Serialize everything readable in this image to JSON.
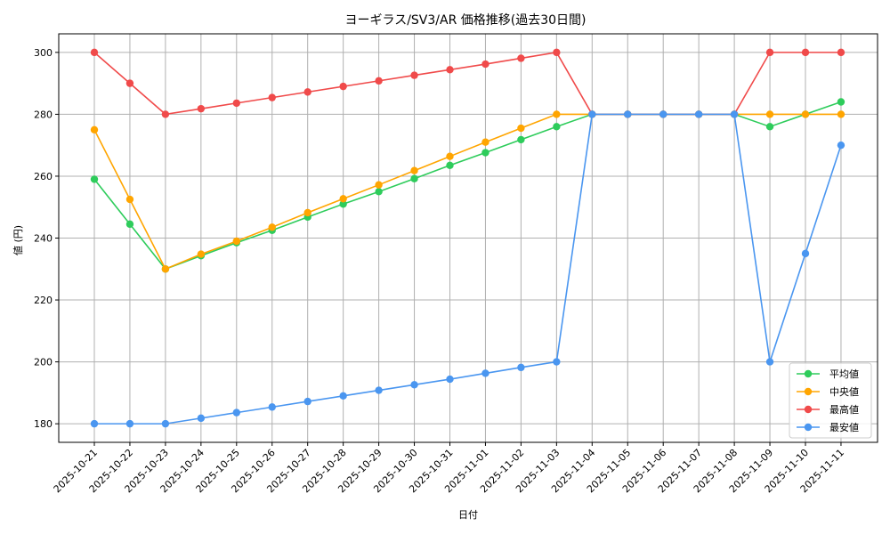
{
  "chart_data": {
    "type": "line",
    "title": "ヨーギラス/SV3/AR 価格推移(過去30日間)",
    "xlabel": "日付",
    "ylabel": "値 (円)",
    "categories": [
      "2025-10-21",
      "2025-10-22",
      "2025-10-23",
      "2025-10-24",
      "2025-10-25",
      "2025-10-26",
      "2025-10-27",
      "2025-10-28",
      "2025-10-29",
      "2025-10-30",
      "2025-10-31",
      "2025-11-01",
      "2025-11-02",
      "2025-11-03",
      "2025-11-04",
      "2025-11-05",
      "2025-11-06",
      "2025-11-07",
      "2025-11-08",
      "2025-11-09",
      "2025-11-10",
      "2025-11-11"
    ],
    "ylim": [
      174,
      306
    ],
    "yticks": [
      180,
      200,
      220,
      240,
      260,
      280,
      300
    ],
    "grid": true,
    "legend_position": "bottom-right",
    "series": [
      {
        "name": "平均値",
        "color": "#2ecc5b",
        "values": [
          259,
          244.5,
          230,
          234.3,
          238.5,
          242.5,
          246.8,
          251,
          255,
          259.2,
          263.5,
          267.6,
          271.8,
          276,
          280,
          280,
          280,
          280,
          280,
          276,
          280,
          284
        ]
      },
      {
        "name": "中央値",
        "color": "#ffa500",
        "values": [
          275,
          252.5,
          230,
          234.8,
          239,
          243.5,
          248.2,
          252.7,
          257.2,
          261.8,
          266.4,
          271,
          275.5,
          280,
          280,
          280,
          280,
          280,
          280,
          280,
          280,
          280
        ]
      },
      {
        "name": "最高値",
        "color": "#f04a4a",
        "values": [
          300,
          290,
          280,
          281.8,
          283.6,
          285.4,
          287.2,
          289,
          290.8,
          292.6,
          294.4,
          296.2,
          298.1,
          300,
          280,
          280,
          280,
          280,
          280,
          300,
          300,
          300
        ]
      },
      {
        "name": "最安値",
        "color": "#4a96f0",
        "values": [
          180,
          180,
          180,
          181.8,
          183.6,
          185.4,
          187.2,
          189,
          190.8,
          192.6,
          194.4,
          196.3,
          198.2,
          200,
          280,
          280,
          280,
          280,
          280,
          200,
          235,
          270
        ]
      }
    ]
  }
}
